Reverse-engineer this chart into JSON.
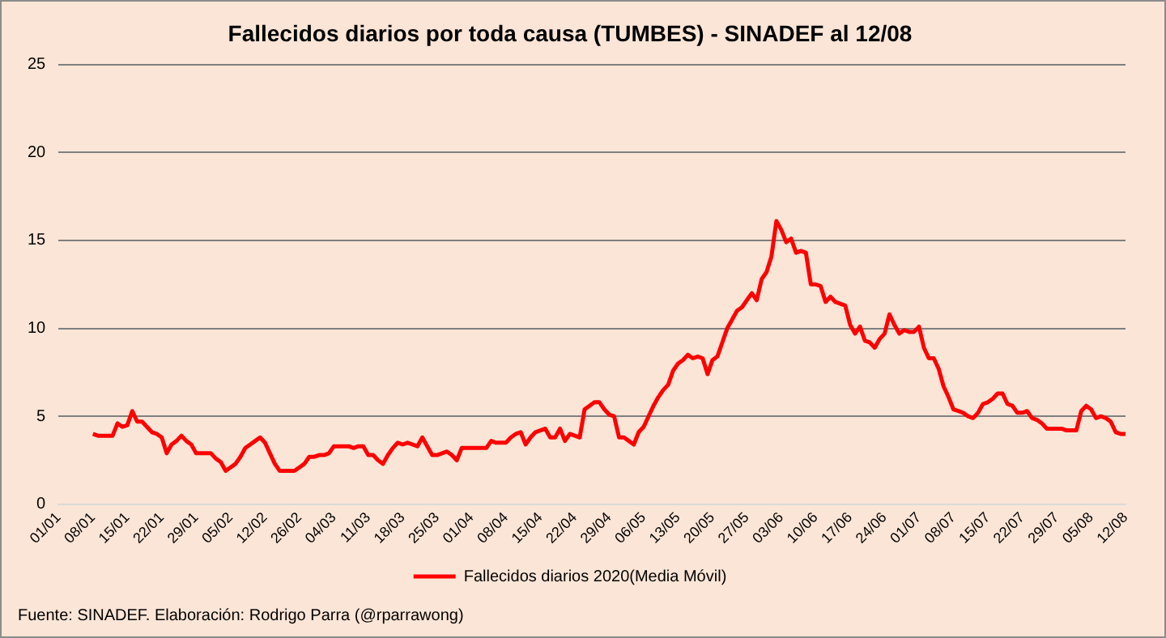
{
  "chart_data": {
    "type": "line",
    "title": "Fallecidos diarios por toda causa (TUMBES) - SINADEF al 12/08",
    "annotations": [
      "Fuente: SINADEF. Elaboración: Rodrigo Parra (@rparrawong)"
    ],
    "categories": [
      "01/01",
      null,
      null,
      null,
      null,
      null,
      null,
      "08/01",
      null,
      null,
      null,
      null,
      null,
      null,
      "15/01",
      null,
      null,
      null,
      null,
      null,
      null,
      "22/01",
      null,
      null,
      null,
      null,
      null,
      null,
      "29/01",
      null,
      null,
      null,
      null,
      null,
      null,
      "05/02",
      null,
      null,
      null,
      null,
      null,
      null,
      "12/02",
      null,
      null,
      null,
      null,
      null,
      null,
      "26/02",
      null,
      null,
      null,
      null,
      null,
      null,
      "04/03",
      null,
      null,
      null,
      null,
      null,
      null,
      "11/03",
      null,
      null,
      null,
      null,
      null,
      null,
      "18/03",
      null,
      null,
      null,
      null,
      null,
      null,
      "25/03",
      null,
      null,
      null,
      null,
      null,
      null,
      "01/04",
      null,
      null,
      null,
      null,
      null,
      null,
      "08/04",
      null,
      null,
      null,
      null,
      null,
      null,
      "15/04",
      null,
      null,
      null,
      null,
      null,
      null,
      "22/04",
      null,
      null,
      null,
      null,
      null,
      null,
      "29/04",
      null,
      null,
      null,
      null,
      null,
      null,
      "06/05",
      null,
      null,
      null,
      null,
      null,
      null,
      "13/05",
      null,
      null,
      null,
      null,
      null,
      null,
      "20/05",
      null,
      null,
      null,
      null,
      null,
      null,
      "27/05",
      null,
      null,
      null,
      null,
      null,
      null,
      "03/06",
      null,
      null,
      null,
      null,
      null,
      null,
      "10/06",
      null,
      null,
      null,
      null,
      null,
      null,
      "17/06",
      null,
      null,
      null,
      null,
      null,
      null,
      "24/06",
      null,
      null,
      null,
      null,
      null,
      null,
      "01/07",
      null,
      null,
      null,
      null,
      null,
      null,
      "08/07",
      null,
      null,
      null,
      null,
      null,
      null,
      "15/07",
      null,
      null,
      null,
      null,
      null,
      null,
      "22/07",
      null,
      null,
      null,
      null,
      null,
      null,
      "29/07",
      null,
      null,
      null,
      null,
      null,
      null,
      "05/08",
      null,
      null,
      null,
      null,
      null,
      null,
      "12/08"
    ],
    "ylim": [
      0,
      25
    ],
    "yticks": [
      0,
      5,
      10,
      15,
      20,
      25
    ],
    "grid": "y",
    "legend": "bottom",
    "marker": "none",
    "line_style": "solid",
    "series": [
      {
        "name": "Fallecidos diarios 2020(Media Móvil)",
        "color": "#ff0000",
        "values": [
          null,
          null,
          null,
          null,
          null,
          null,
          null,
          4.0,
          3.9,
          3.9,
          3.9,
          3.9,
          4.6,
          4.4,
          4.5,
          5.3,
          4.7,
          4.7,
          4.4,
          4.1,
          4.0,
          3.8,
          2.9,
          3.4,
          3.6,
          3.9,
          3.6,
          3.4,
          2.9,
          2.9,
          2.9,
          2.9,
          2.6,
          2.4,
          1.9,
          2.1,
          2.3,
          2.7,
          3.2,
          3.4,
          3.6,
          3.8,
          3.5,
          2.9,
          2.3,
          1.9,
          1.9,
          1.9,
          1.9,
          2.1,
          2.3,
          2.7,
          2.7,
          2.8,
          2.8,
          2.9,
          3.3,
          3.3,
          3.3,
          3.3,
          3.2,
          3.3,
          3.3,
          2.8,
          2.8,
          2.5,
          2.3,
          2.8,
          3.2,
          3.5,
          3.4,
          3.5,
          3.4,
          3.3,
          3.8,
          3.3,
          2.8,
          2.8,
          2.9,
          3.0,
          2.8,
          2.5,
          3.2,
          3.2,
          3.2,
          3.2,
          3.2,
          3.2,
          3.6,
          3.5,
          3.5,
          3.5,
          3.8,
          4.0,
          4.1,
          3.4,
          3.8,
          4.1,
          4.2,
          4.3,
          3.8,
          3.8,
          4.3,
          3.6,
          4.0,
          3.9,
          3.8,
          5.4,
          5.6,
          5.8,
          5.8,
          5.4,
          5.1,
          5.0,
          3.8,
          3.8,
          3.6,
          3.4,
          4.1,
          4.4,
          5.0,
          5.6,
          6.1,
          6.5,
          6.8,
          7.6,
          8.0,
          8.2,
          8.5,
          8.3,
          8.4,
          8.3,
          7.4,
          8.2,
          8.4,
          9.2,
          10.0,
          10.5,
          11.0,
          11.2,
          11.6,
          12.0,
          11.6,
          12.8,
          13.2,
          14.1,
          16.1,
          15.6,
          14.9,
          15.1,
          14.3,
          14.4,
          14.3,
          12.5,
          12.5,
          12.4,
          11.5,
          11.8,
          11.5,
          11.4,
          11.3,
          10.2,
          9.7,
          10.1,
          9.3,
          9.2,
          8.9,
          9.4,
          9.7,
          10.8,
          10.2,
          9.7,
          9.9,
          9.8,
          9.8,
          10.1,
          8.9,
          8.3,
          8.3,
          7.7,
          6.7,
          6.1,
          5.4,
          5.3,
          5.2,
          5.0,
          4.9,
          5.2,
          5.7,
          5.8,
          6.0,
          6.3,
          6.3,
          5.7,
          5.6,
          5.2,
          5.2,
          5.3,
          4.9,
          4.8,
          4.6,
          4.3,
          4.3,
          4.3,
          4.3,
          4.2,
          4.2,
          4.2,
          5.3,
          5.6,
          5.4,
          4.9,
          5.0,
          4.9,
          4.7,
          4.1,
          4.0,
          4.0
        ]
      }
    ]
  }
}
